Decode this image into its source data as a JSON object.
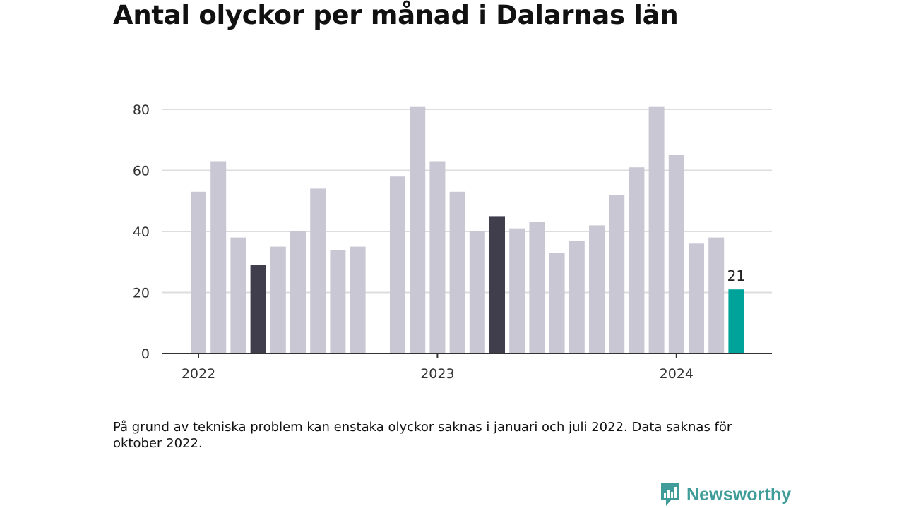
{
  "chart_data": {
    "type": "bar",
    "title": "Antal olyckor per månad i Dalarnas län",
    "ylim": [
      0,
      80
    ],
    "yticks": [
      0,
      20,
      40,
      60,
      80
    ],
    "grid": true,
    "x_tick_labels": [
      {
        "label": "2022",
        "month_index": 0
      },
      {
        "label": "2023",
        "month_index": 12
      },
      {
        "label": "2024",
        "month_index": 24
      }
    ],
    "months": [
      "2022-01",
      "2022-02",
      "2022-03",
      "2022-04",
      "2022-05",
      "2022-06",
      "2022-07",
      "2022-08",
      "2022-09",
      "2022-10",
      "2022-11",
      "2022-12",
      "2023-01",
      "2023-02",
      "2023-03",
      "2023-04",
      "2023-05",
      "2023-06",
      "2023-07",
      "2023-08",
      "2023-09",
      "2023-10",
      "2023-11",
      "2023-12",
      "2024-01",
      "2024-02",
      "2024-03",
      "2024-04"
    ],
    "values": [
      53,
      63,
      38,
      29,
      35,
      40,
      54,
      34,
      35,
      null,
      58,
      81,
      63,
      53,
      40,
      45,
      41,
      43,
      33,
      37,
      42,
      52,
      61,
      81,
      65,
      36,
      38,
      21
    ],
    "highlight_months": [
      "2022-04",
      "2023-04"
    ],
    "latest_month": "2024-04",
    "data_labels": [
      {
        "month": "2024-04",
        "text": "21"
      }
    ],
    "colors": {
      "bar": "#c9c7d3",
      "highlight": "#403d4d",
      "latest": "#00a39a",
      "grid": "#dddddd",
      "axis": "#333333"
    }
  },
  "note": "På grund av tekniska problem kan enstaka olyckor saknas i januari och juli 2022. Data saknas för oktober 2022.",
  "brand": {
    "name": "Newsworthy",
    "icon": "newsworthy-logo-icon",
    "color": "#3f9c98"
  }
}
